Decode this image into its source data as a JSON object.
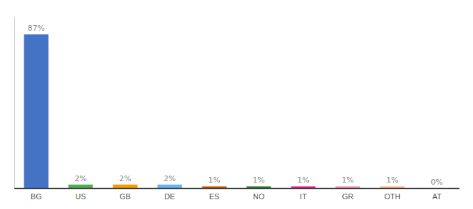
{
  "chart_data": {
    "type": "bar",
    "categories": [
      "BG",
      "US",
      "GB",
      "DE",
      "ES",
      "NO",
      "IT",
      "GR",
      "OTH",
      "AT"
    ],
    "values": [
      87,
      2,
      2,
      2,
      1,
      1,
      1,
      1,
      1,
      0
    ],
    "value_labels": [
      "87%",
      "2%",
      "2%",
      "2%",
      "1%",
      "1%",
      "1%",
      "1%",
      "1%",
      "0%"
    ],
    "data_labels": true,
    "colors": [
      "#4472c4",
      "#4caf50",
      "#ff9800",
      "#64b5f6",
      "#c85a00",
      "#2e7d32",
      "#e91e8c",
      "#f48fb1",
      "#ffb599",
      "#ffffff"
    ],
    "ylim": [
      0,
      97
    ],
    "tick_labels": "x",
    "grid": false
  }
}
